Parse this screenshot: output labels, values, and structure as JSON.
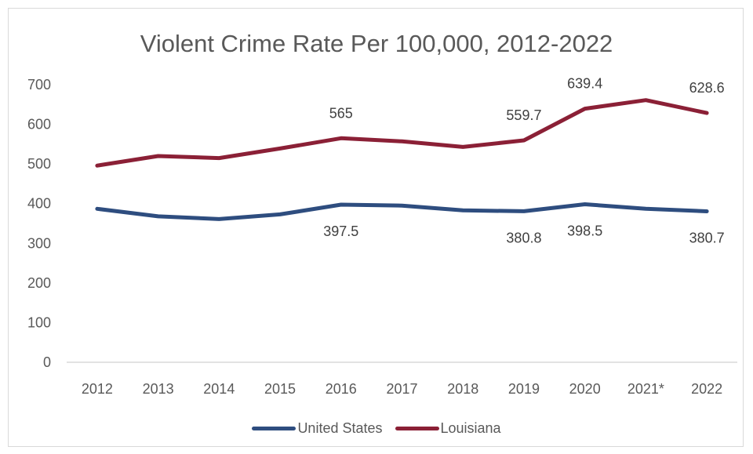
{
  "chart_data": {
    "type": "line",
    "title": "Violent Crime Rate Per 100,000, 2012-2022",
    "categories": [
      "2012",
      "2013",
      "2014",
      "2015",
      "2016",
      "2017",
      "2018",
      "2019",
      "2020",
      "2021*",
      "2022"
    ],
    "ylim": [
      0,
      700
    ],
    "yticks": [
      "0",
      "100",
      "200",
      "300",
      "400",
      "500",
      "600",
      "700"
    ],
    "grid": false,
    "legend_position": "bottom",
    "series": [
      {
        "name": "United States",
        "color": "#2e4d7f",
        "values": [
          387,
          368,
          361,
          373,
          397.5,
          395,
          383,
          380.8,
          398.5,
          387,
          380.7
        ],
        "labels": [
          "",
          "",
          "",
          "",
          "397.5",
          "",
          "",
          "380.8",
          "398.5",
          "",
          "380.7"
        ],
        "label_position": "below"
      },
      {
        "name": "Louisiana",
        "color": "#8b2036",
        "values": [
          496,
          520,
          515,
          539,
          565,
          557,
          543,
          559.7,
          639.4,
          661,
          628.6
        ],
        "labels": [
          "",
          "",
          "",
          "",
          "565",
          "",
          "",
          "559.7",
          "639.4",
          "",
          "628.6"
        ],
        "label_position": "above"
      }
    ]
  }
}
